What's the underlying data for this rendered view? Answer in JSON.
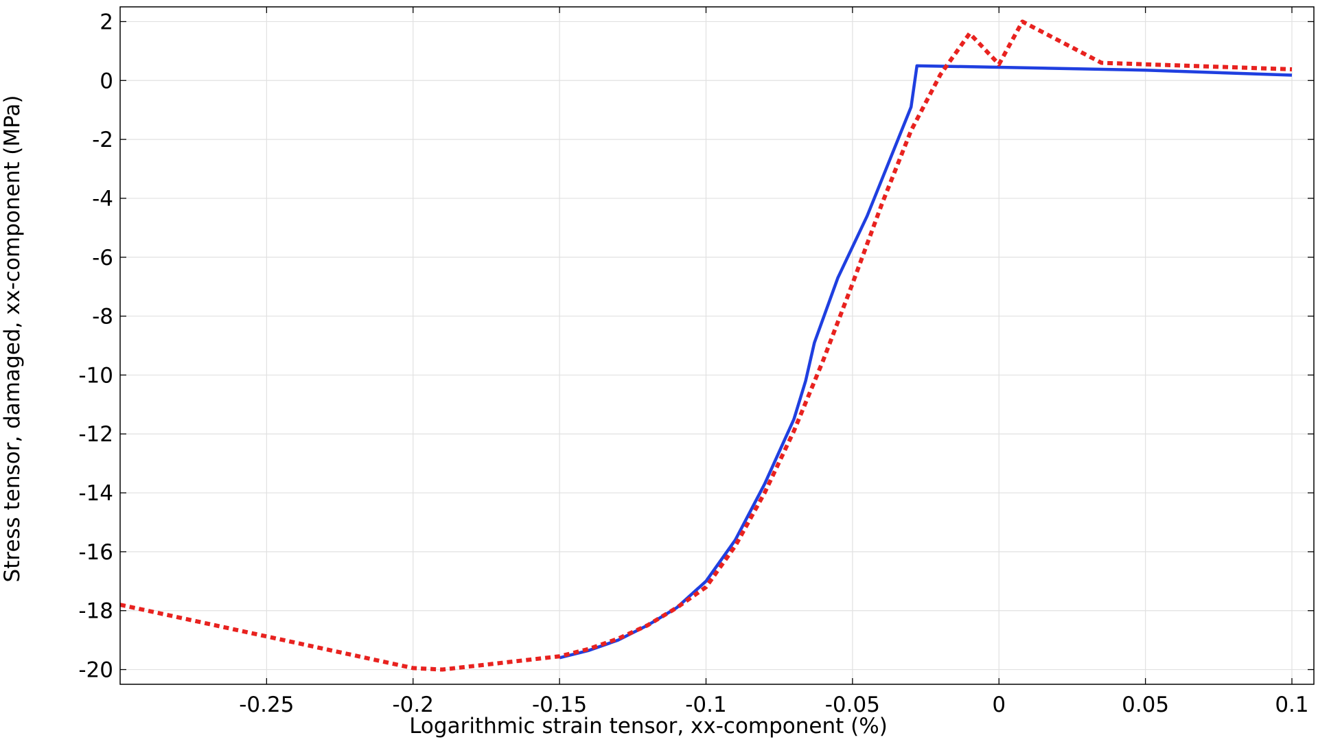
{
  "chart_data": {
    "type": "line",
    "title": "",
    "xlabel": "Logarithmic strain tensor, xx-component (%)",
    "ylabel": "Stress tensor, damaged, xx-component (MPa)",
    "xlim": [
      -0.3,
      0.1075
    ],
    "ylim": [
      -20.5,
      2.5
    ],
    "x_ticks": [
      -0.25,
      -0.2,
      -0.15,
      -0.1,
      -0.05,
      0,
      0.05,
      0.1
    ],
    "x_tick_labels": [
      "-0.25",
      "-0.2",
      "-0.15",
      "-0.1",
      "-0.05",
      "0",
      "0.05",
      "0.1"
    ],
    "y_ticks": [
      2,
      0,
      -2,
      -4,
      -6,
      -8,
      -10,
      -12,
      -14,
      -16,
      -18,
      -20
    ],
    "y_tick_labels": [
      "2",
      "0",
      "-2",
      "-4",
      "-6",
      "-8",
      "-10",
      "-12",
      "-14",
      "-16",
      "-18",
      "-20"
    ],
    "grid": true,
    "legend": "none",
    "series": [
      {
        "color": "#1f3fe0",
        "line_style": "solid",
        "x": [
          -0.15,
          -0.14,
          -0.13,
          -0.12,
          -0.11,
          -0.1,
          -0.09,
          -0.08,
          -0.07,
          -0.066,
          -0.063,
          -0.055,
          -0.045,
          -0.03,
          -0.028,
          0,
          0.05,
          0.1
        ],
        "y": [
          -19.6,
          -19.35,
          -19.0,
          -18.5,
          -17.9,
          -17.0,
          -15.6,
          -13.7,
          -11.5,
          -10.2,
          -8.9,
          -6.7,
          -4.6,
          -0.9,
          0.5,
          0.45,
          0.35,
          0.18
        ]
      },
      {
        "color": "#e8221f",
        "line_style": "dotted",
        "x": [
          -0.3,
          -0.2,
          -0.19,
          -0.15,
          -0.14,
          -0.13,
          -0.12,
          -0.11,
          -0.1,
          -0.09,
          -0.08,
          -0.07,
          -0.06,
          -0.05,
          -0.04,
          -0.03,
          -0.02,
          -0.01,
          0,
          0.008,
          0.035,
          0.1
        ],
        "y": [
          -17.8,
          -19.95,
          -20.0,
          -19.55,
          -19.3,
          -18.95,
          -18.5,
          -17.9,
          -17.2,
          -15.8,
          -14.0,
          -11.9,
          -9.5,
          -6.9,
          -4.2,
          -1.7,
          0.2,
          1.6,
          0.55,
          2.0,
          0.6,
          0.38
        ]
      }
    ]
  }
}
